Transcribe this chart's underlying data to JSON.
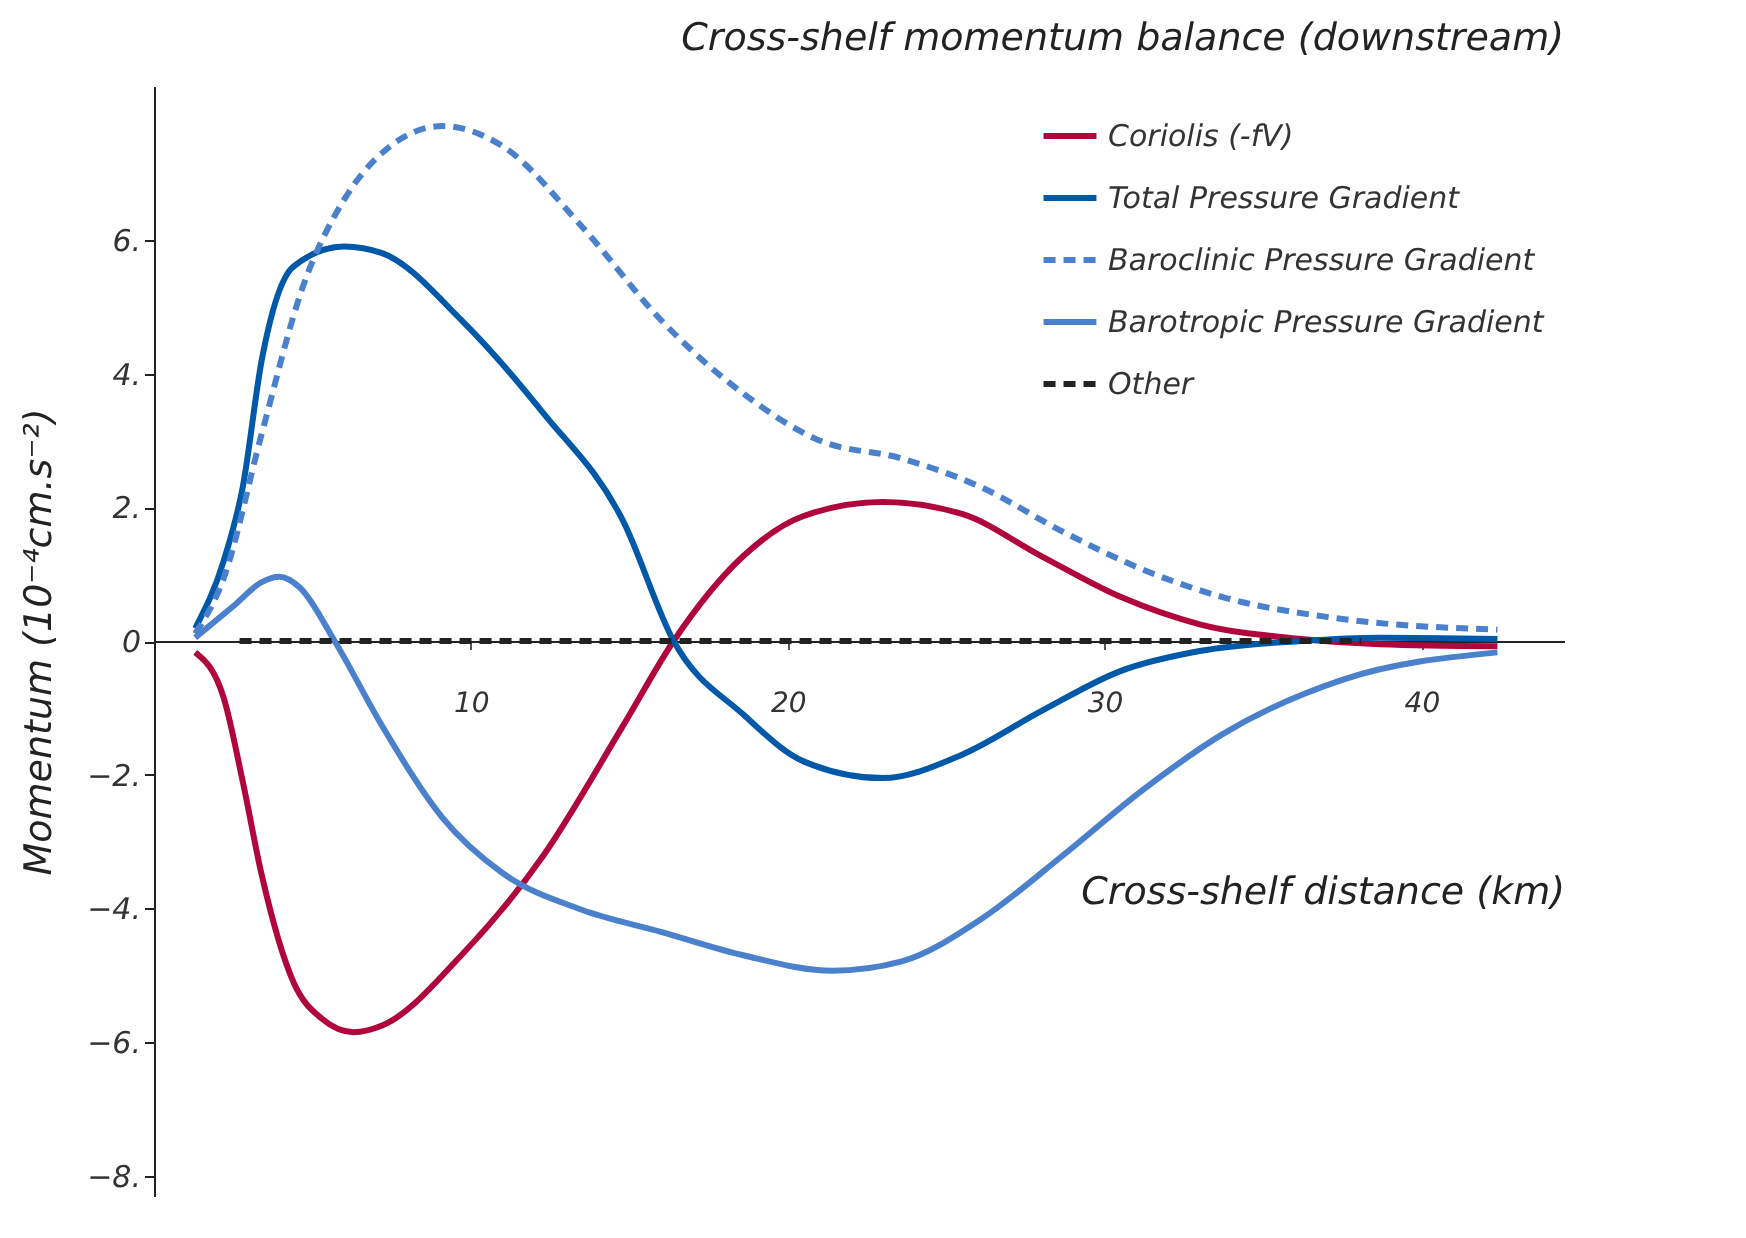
{
  "chart_data": {
    "type": "line",
    "title": "Cross-shelf momentum balance (downstream)",
    "xlabel": "Cross-shelf distance (km)",
    "ylabel": "Momentum (10⁻⁴cm.s⁻²)",
    "xlim": [
      0,
      44.5
    ],
    "ylim": [
      -8.3,
      8.3
    ],
    "xticks": [
      10,
      20,
      30,
      40
    ],
    "yticks": [
      {
        "value": -8,
        "label": "−8."
      },
      {
        "value": -6,
        "label": "−6."
      },
      {
        "value": -4,
        "label": "−4."
      },
      {
        "value": -2,
        "label": "−2."
      },
      0,
      {
        "value": 2,
        "label": "2."
      },
      {
        "value": 4,
        "label": "4."
      },
      {
        "value": 6,
        "label": "6."
      }
    ],
    "grid": false,
    "legend": "top right",
    "series": [
      {
        "name": "Coriolis (-fV)",
        "color": "#b0063c",
        "line_style": "solid",
        "x": [
          1.3,
          2.2,
          2.8,
          3.4,
          4.4,
          5.3,
          6.3,
          7.2,
          9.7,
          12.3,
          14.8,
          16.4,
          18.6,
          20.5,
          23,
          25.5,
          28,
          30.5,
          33,
          36.2,
          38.7,
          42.4
        ],
        "values": [
          -0.17,
          -0.85,
          -2.1,
          -3.5,
          -5.1,
          -5.65,
          -5.85,
          -5.75,
          -4.7,
          -3.2,
          -1.27,
          0,
          1.27,
          1.87,
          2.08,
          1.9,
          1.27,
          0.66,
          0.25,
          0.03,
          -0.05,
          -0.08
        ]
      },
      {
        "name": "Total Pressure Gradient",
        "color": "#0058a8",
        "line_style": "solid",
        "x": [
          1.3,
          2.2,
          2.8,
          3.4,
          4.4,
          6,
          7.2,
          9.7,
          12.3,
          14.8,
          16.4,
          18.6,
          20.5,
          23,
          25.5,
          28,
          30.5,
          33,
          36.2,
          38.7,
          42.4
        ],
        "values": [
          0.19,
          1.2,
          2.3,
          4.2,
          5.6,
          5.9,
          5.8,
          4.8,
          3.4,
          1.8,
          0,
          -1.1,
          -1.8,
          -2.05,
          -1.7,
          -1.05,
          -0.45,
          -0.15,
          0,
          0.05,
          0.03
        ]
      },
      {
        "name": "Baroclinic Pressure Gradient",
        "color": "#4a80cc",
        "line_style": "dashed",
        "x": [
          1.3,
          2.2,
          3.4,
          4.7,
          6,
          7.2,
          9.1,
          11,
          13.5,
          16,
          18.6,
          21,
          23.6,
          26.1,
          28.7,
          31.2,
          33.7,
          37.5,
          42.4
        ],
        "values": [
          0.11,
          0.94,
          3.1,
          5.3,
          6.6,
          7.3,
          7.7,
          7.4,
          6.2,
          4.8,
          3.7,
          3.0,
          2.73,
          2.3,
          1.63,
          1.07,
          0.66,
          0.33,
          0.17
        ]
      },
      {
        "name": "Barotropic Pressure Gradient",
        "color": "#4a80cc",
        "line_style": "solid",
        "x": [
          1.3,
          2.5,
          3.4,
          3.95,
          4.6,
          5.7,
          7.2,
          9.1,
          11,
          13.5,
          16,
          18.6,
          21.4,
          23.6,
          26.1,
          28.7,
          31.2,
          33.7,
          37.5,
          42.4
        ],
        "values": [
          0.05,
          0.52,
          0.88,
          0.96,
          0.8,
          0,
          -1.27,
          -2.64,
          -3.47,
          -4.02,
          -4.35,
          -4.7,
          -4.93,
          -4.79,
          -4.16,
          -3.2,
          -2.23,
          -1.4,
          -0.58,
          -0.17
        ]
      },
      {
        "name": "Other",
        "color": "#222222",
        "line_style": "dashed",
        "x": [
          2.7,
          38.1
        ],
        "values": [
          0,
          0
        ]
      }
    ]
  }
}
